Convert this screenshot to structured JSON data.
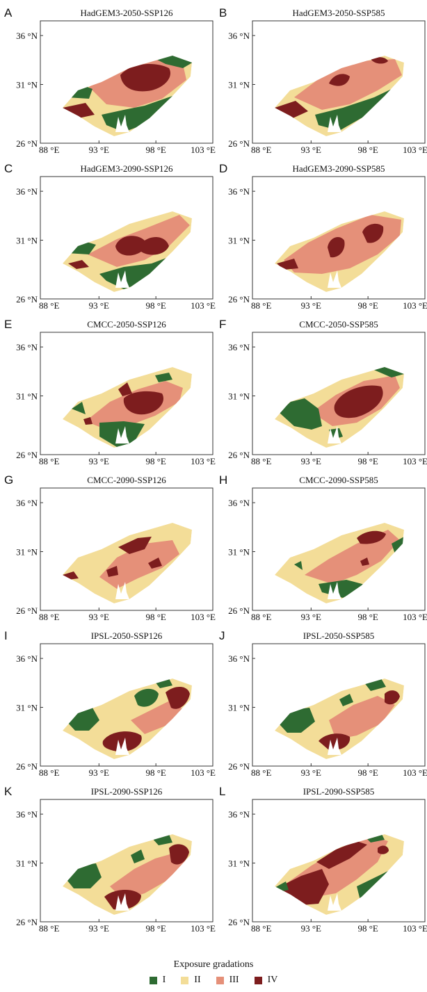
{
  "panels": [
    {
      "letter": "A",
      "title": "HadGEM3-2050-SSP126"
    },
    {
      "letter": "B",
      "title": "HadGEM3-2050-SSP585"
    },
    {
      "letter": "C",
      "title": "HadGEM3-2090-SSP126"
    },
    {
      "letter": "D",
      "title": "HadGEM3-2090-SSP585"
    },
    {
      "letter": "E",
      "title": "CMCC-2050-SSP126"
    },
    {
      "letter": "F",
      "title": "CMCC-2050-SSP585"
    },
    {
      "letter": "G",
      "title": "CMCC-2090-SSP126"
    },
    {
      "letter": "H",
      "title": "CMCC-2090-SSP585"
    },
    {
      "letter": "I",
      "title": "IPSL-2050-SSP126"
    },
    {
      "letter": "J",
      "title": "IPSL-2050-SSP585"
    },
    {
      "letter": "K",
      "title": "IPSL-2090-SSP126"
    },
    {
      "letter": "L",
      "title": "IPSL-2090-SSP585"
    }
  ],
  "axes": {
    "lon_ticks": [
      "88 °E",
      "93 °E",
      "98 °E",
      "103 °E"
    ],
    "lat_ticks": [
      "36 °N",
      "31 °N",
      "26 °N"
    ]
  },
  "legend": {
    "title": "Exposure gradations",
    "items": [
      {
        "label": "I",
        "color": "#2e6b32"
      },
      {
        "label": "II",
        "color": "#f3dd98"
      },
      {
        "label": "III",
        "color": "#e59079"
      },
      {
        "label": "IV",
        "color": "#7d1d1e"
      }
    ]
  }
}
